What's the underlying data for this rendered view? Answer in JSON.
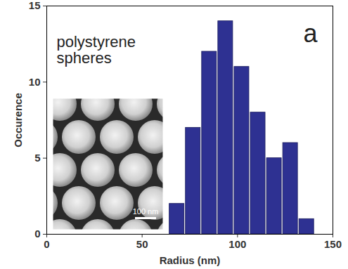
{
  "chart_data": {
    "type": "histogram",
    "bins": [
      64,
      72.5,
      81,
      89.5,
      98,
      106.5,
      115,
      123.5,
      132,
      140.5
    ],
    "values": [
      2,
      7,
      12,
      14,
      11,
      8,
      5,
      6,
      1
    ],
    "color": "#2e3192",
    "xlim": [
      0,
      150
    ],
    "xticks": [
      0,
      50,
      100,
      150
    ],
    "ylim": [
      0,
      15
    ],
    "yticks": [
      0,
      5,
      10,
      15
    ],
    "x_label": "Radius (nm)",
    "y_label": "Occurence",
    "annotations": [
      "polystyrene spheres",
      "a"
    ],
    "inset_scale_label": "100 nm",
    "grid": false
  }
}
